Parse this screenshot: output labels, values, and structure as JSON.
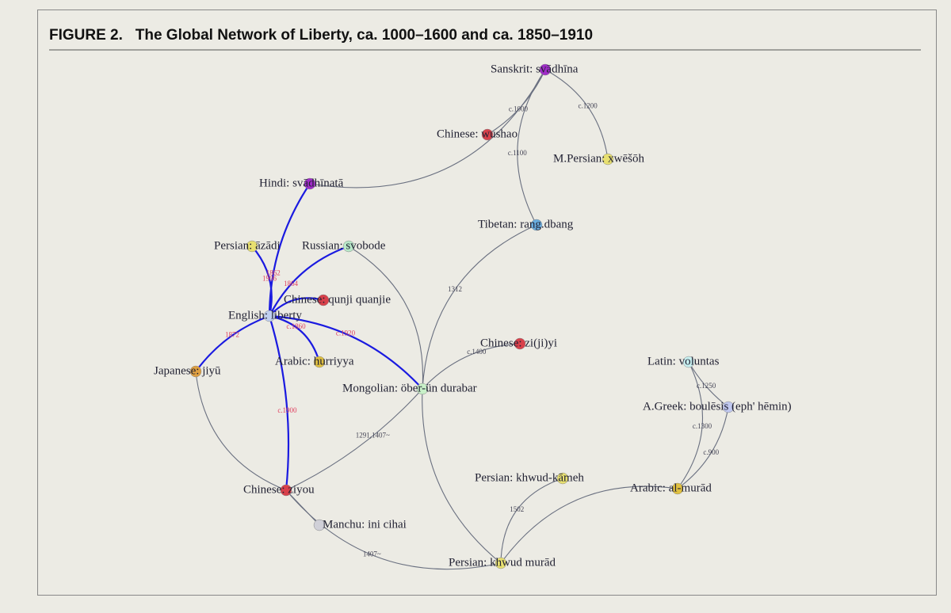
{
  "header": {
    "title": "FIGURE 2.   The Global Network of Liberty, ca. 1000–1600 and ca. 1850–1910"
  },
  "nodes": [
    {
      "label": "Sanskrit: svādhīna",
      "color": "#a02cc8"
    },
    {
      "label": "Chinese: wushao",
      "color": "#d8404a"
    },
    {
      "label": "M.Persian: xwēšōh",
      "color": "#e8e070"
    },
    {
      "label": "Hindi: svādhīnatā",
      "color": "#a02cc8"
    },
    {
      "label": "Tibetan: rang.dbang",
      "color": "#6aaee0"
    },
    {
      "label": "Persian: āzādi",
      "color": "#e8e070"
    },
    {
      "label": "Russian: svobode",
      "color": "#b8e8c8"
    },
    {
      "label": "Chinese: qunji quanjie",
      "color": "#d8404a"
    },
    {
      "label": "English: liberty",
      "color": "#c0d0f0"
    },
    {
      "label": "Chinese: zi(ji)yi",
      "color": "#d8404a"
    },
    {
      "label": "Latin: voluntas",
      "color": "#c8f0f0"
    },
    {
      "label": "Arabic: hurriyya",
      "color": "#e0c040"
    },
    {
      "label": "Japanese: jiyū",
      "color": "#e0a040"
    },
    {
      "label": "Mongolian: öber-ün durabar",
      "color": "#c8f0c8"
    },
    {
      "label": "A.Greek: boulēsis (eph' hēmin)",
      "color": "#c0c8f0"
    },
    {
      "label": "Persian: khwud-kāmeh",
      "color": "#e8e070"
    },
    {
      "label": "Arabic: al-murād",
      "color": "#e0c040"
    },
    {
      "label": "Chinese: ziyou",
      "color": "#d8404a"
    },
    {
      "label": "Manchu: ini cihai",
      "color": "#d0d0d8"
    },
    {
      "label": "Persian: khwud murād",
      "color": "#e8e070"
    }
  ],
  "edge_labels": [
    "c.1000",
    "c.1200",
    "c.1100",
    "1312",
    "c.1400",
    "1291,1407~",
    "1407~",
    "1502",
    "c.1300",
    "c.1250",
    "c.900",
    "1862",
    "1906",
    "1864",
    "c.1860",
    "c.1920",
    "1872",
    "c.1900"
  ]
}
